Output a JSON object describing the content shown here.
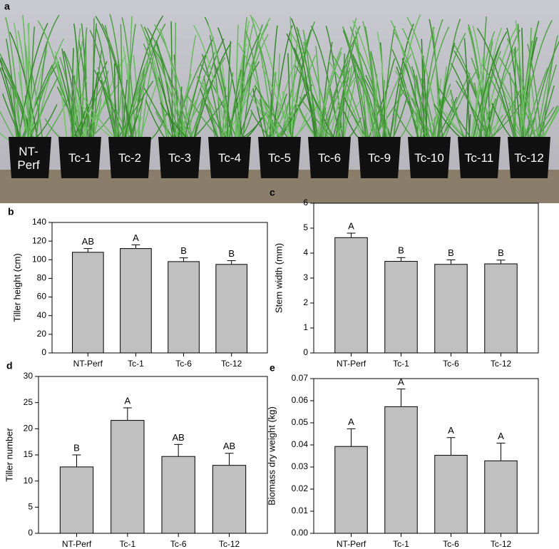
{
  "photo": {
    "panel": "a",
    "labels": [
      "NT-Perf",
      "Tc-1",
      "Tc-2",
      "Tc-3",
      "Tc-4",
      "Tc-5",
      "Tc-6",
      "Tc-9",
      "Tc-10",
      "Tc-11",
      "Tc-12"
    ]
  },
  "chart_data": [
    {
      "type": "bar",
      "panel": "b",
      "y_label": "Tiller height (cm)",
      "categories": [
        "NT-Perf",
        "Tc-1",
        "Tc-6",
        "Tc-12"
      ],
      "values": [
        108,
        112,
        98,
        95
      ],
      "errors": [
        4,
        4,
        4,
        4
      ],
      "annotations": [
        "AB",
        "A",
        "B",
        "B"
      ],
      "color": "#c0c0c0",
      "ylim": [
        0,
        140
      ],
      "yticks": [
        0,
        20,
        40,
        60,
        80,
        100,
        120,
        140
      ]
    },
    {
      "type": "bar",
      "panel": "c",
      "y_label": "Stem width (mm)",
      "categories": [
        "NT-Perf",
        "Tc-1",
        "Tc-6",
        "Tc-12"
      ],
      "values": [
        4.62,
        3.67,
        3.55,
        3.57
      ],
      "errors": [
        0.18,
        0.15,
        0.18,
        0.15
      ],
      "annotations": [
        "A",
        "B",
        "B",
        "B"
      ],
      "color": "#c0c0c0",
      "ylim": [
        0,
        6
      ],
      "yticks": [
        0,
        1,
        2,
        3,
        4,
        5,
        6
      ]
    },
    {
      "type": "bar",
      "panel": "d",
      "y_label": "Tiller number",
      "categories": [
        "NT-Perf",
        "Tc-1",
        "Tc-6",
        "Tc-12"
      ],
      "values": [
        12.7,
        21.6,
        14.7,
        13.0
      ],
      "errors": [
        2.3,
        2.4,
        2.3,
        2.3
      ],
      "annotations": [
        "B",
        "A",
        "AB",
        "AB"
      ],
      "color": "#c0c0c0",
      "ylim": [
        0,
        30
      ],
      "yticks": [
        0,
        5,
        10,
        15,
        20,
        25,
        30
      ]
    },
    {
      "type": "bar",
      "panel": "e",
      "y_label": "Biomass dry weight (kg)",
      "categories": [
        "NT-Perf",
        "Tc-1",
        "Tc-6",
        "Tc-12"
      ],
      "values": [
        0.0393,
        0.0573,
        0.0353,
        0.0328
      ],
      "errors": [
        0.008,
        0.008,
        0.008,
        0.008
      ],
      "annotations": [
        "A",
        "A",
        "A",
        "A"
      ],
      "color": "#c0c0c0",
      "ylim": [
        0,
        0.07
      ],
      "yticks": [
        {
          "value": 0,
          "label": "0.00"
        },
        0.01,
        0.02,
        0.03,
        0.04,
        0.05,
        0.06,
        0.07
      ]
    }
  ]
}
